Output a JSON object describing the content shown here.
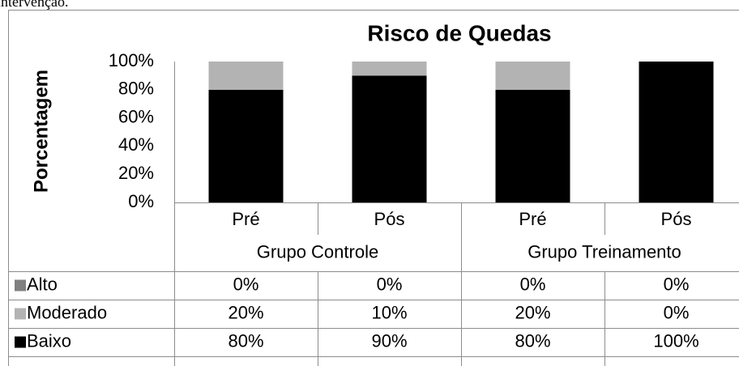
{
  "caption": "intervenção.",
  "chart_data": {
    "type": "stacked-bar",
    "title": "Risco de Quedas",
    "y_label": "Porcentagem",
    "categories": [
      "Pré",
      "Pós",
      "Pré",
      "Pós"
    ],
    "groups": [
      "Grupo Controle",
      "Grupo Treinamento"
    ],
    "series": [
      {
        "name": "Alto",
        "color": "#808080",
        "values": [
          0,
          0,
          0,
          0
        ],
        "value_labels": [
          "0%",
          "0%",
          "0%",
          "0%"
        ]
      },
      {
        "name": "Moderado",
        "color": "#b3b3b3",
        "values": [
          20,
          10,
          20,
          0
        ],
        "value_labels": [
          "20%",
          "10%",
          "20%",
          "0%"
        ]
      },
      {
        "name": "Baixo",
        "color": "#000000",
        "values": [
          80,
          90,
          80,
          100
        ],
        "value_labels": [
          "80%",
          "90%",
          "80%",
          "100%"
        ]
      }
    ],
    "ylim": [
      0,
      100
    ],
    "yticks": [
      {
        "value": 0,
        "label": "0%"
      },
      {
        "value": 20,
        "label": "20%"
      },
      {
        "value": 40,
        "label": "40%"
      },
      {
        "value": 60,
        "label": "60%"
      },
      {
        "value": 80,
        "label": "80%"
      },
      {
        "value": 100,
        "label": "100%"
      }
    ],
    "grid": false
  }
}
